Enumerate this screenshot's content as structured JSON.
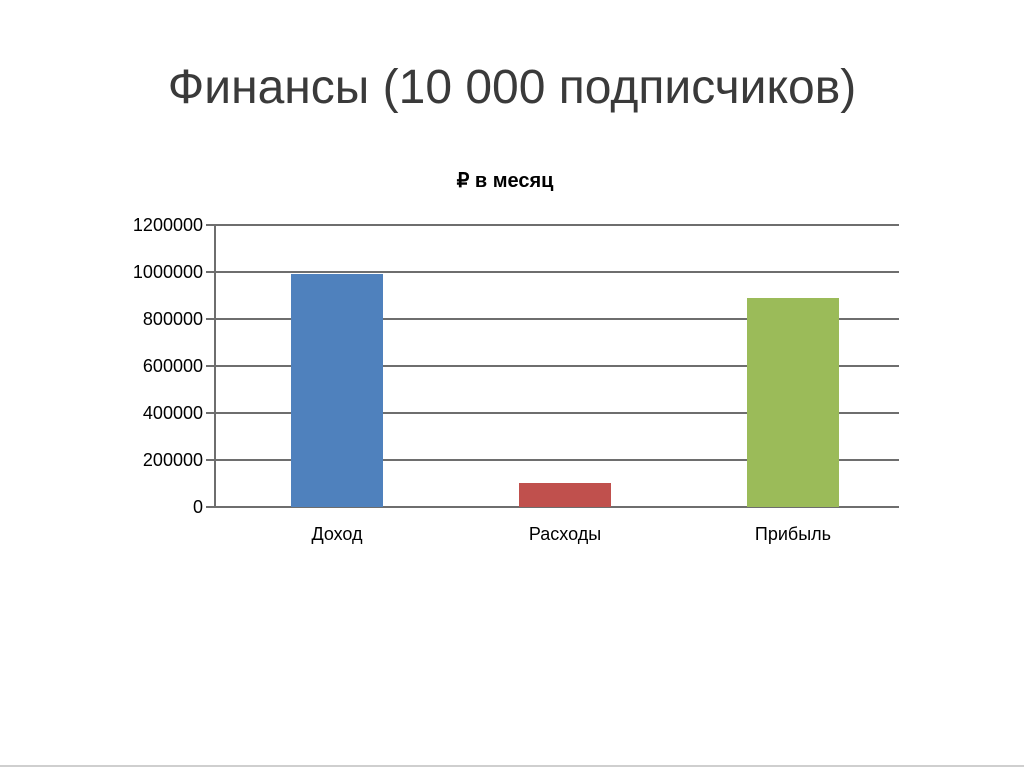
{
  "slide": {
    "title": "Финансы (10 000 подписчиков)"
  },
  "chart_data": {
    "type": "bar",
    "title": "₽ в месяц",
    "categories": [
      "Доход",
      "Расходы",
      "Прибыль"
    ],
    "values": [
      990000,
      100000,
      890000
    ],
    "colors": [
      "#4f81bd",
      "#c0504d",
      "#9bbb59"
    ],
    "xlabel": "",
    "ylabel": "",
    "ylim": [
      0,
      1200000
    ],
    "yticks": [
      0,
      200000,
      400000,
      600000,
      800000,
      1000000,
      1200000
    ],
    "grid": true,
    "legend": "none",
    "axis_color": "#6e6e6e",
    "text_color": "#000000"
  }
}
